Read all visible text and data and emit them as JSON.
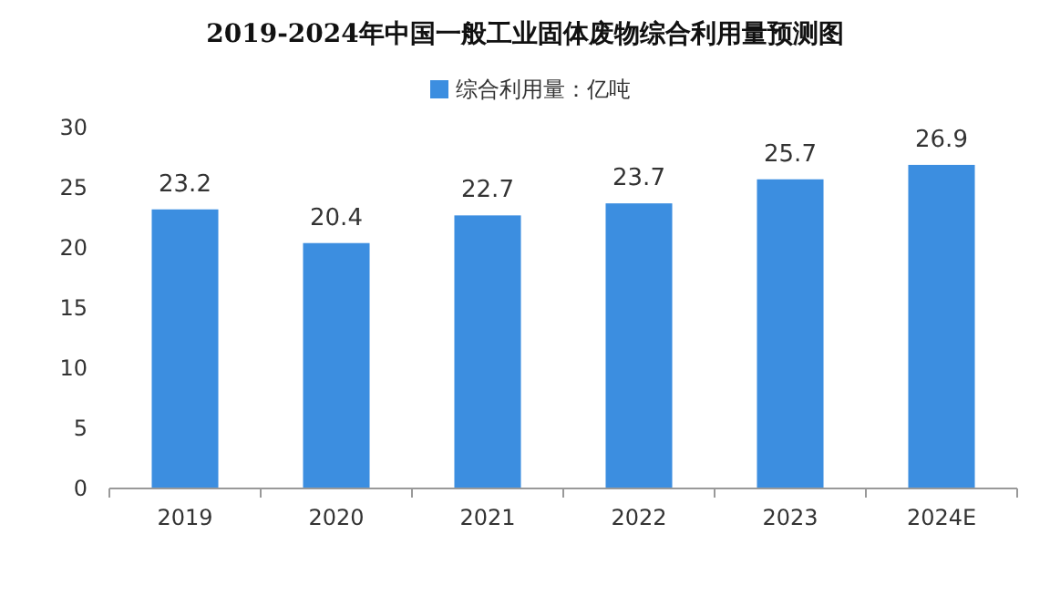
{
  "chart_data": {
    "type": "bar",
    "title": "2019-2024年中国一般工业固体废物综合利用量预测图",
    "categories": [
      "2019",
      "2020",
      "2021",
      "2022",
      "2023",
      "2024E"
    ],
    "series": [
      {
        "name": "综合利用量：亿吨",
        "color": "#3c8ee0",
        "values": [
          23.2,
          20.4,
          22.7,
          23.7,
          25.7,
          26.9
        ]
      }
    ],
    "ylim": [
      0,
      30
    ],
    "yticks": [
      0,
      5,
      10,
      15,
      20,
      25,
      30
    ],
    "data_labels": true,
    "legend": "top"
  }
}
